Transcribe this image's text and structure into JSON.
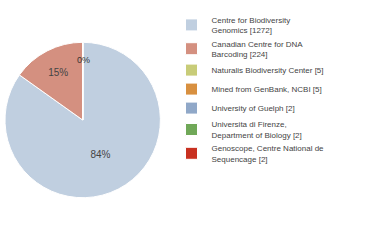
{
  "chart_data": {
    "type": "pie",
    "categories": [
      "Centre for Biodiversity\nGenomics [1272]",
      "Canadian Centre for DNA\nBarcoding [224]",
      "Naturalis Biodiversity Center [5]",
      "Mined from GenBank, NCBI [5]",
      "University of Guelph [2]",
      "Universita di Firenze,\nDepartment of Biology [2]",
      "Genoscope, Centre National de\nSequencage [2]"
    ],
    "values": [
      84,
      15,
      0,
      0,
      0,
      0,
      0
    ],
    "value_labels": [
      "84%",
      "15%",
      null,
      null,
      null,
      null,
      null
    ],
    "colors": [
      "#c0cfe0",
      "#d49080",
      "#c8cc78",
      "#d89040",
      "#90a8c8",
      "#70a858",
      "#c83020"
    ],
    "data_labels": true,
    "legend": "right",
    "annotations": [
      "0%"
    ]
  }
}
